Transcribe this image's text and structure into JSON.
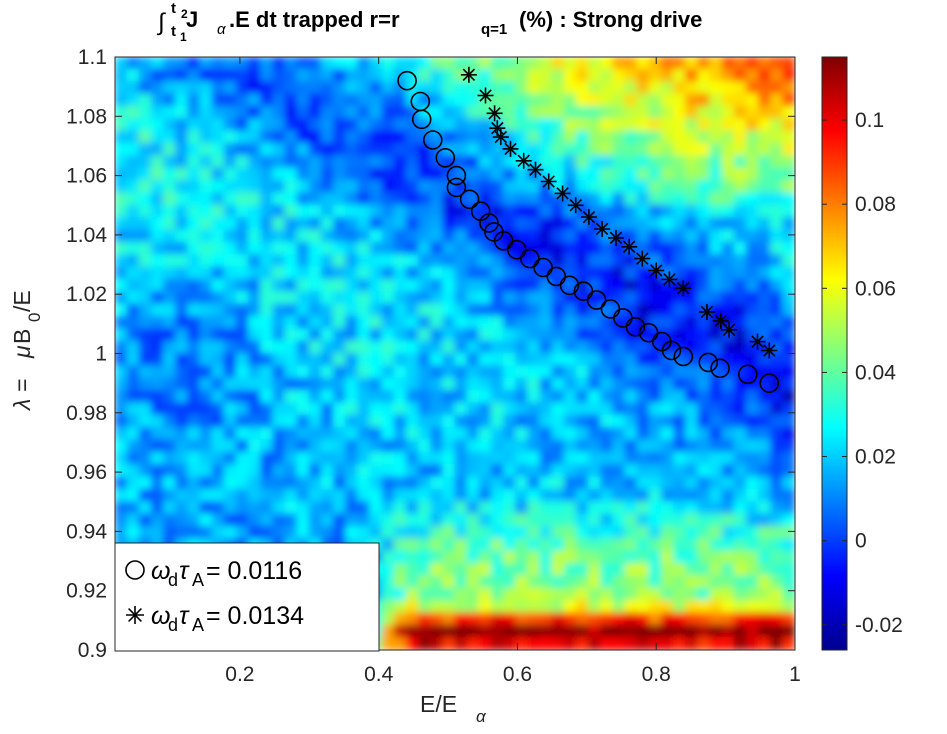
{
  "chart_data": {
    "type": "heatmap",
    "title": {
      "integral": "∫",
      "lim_top": "t",
      "lim_top_sub": "2",
      "lim_bot": "t",
      "lim_bot_sub": "1",
      "part1": " J",
      "part1_sub": "α",
      "part2": ".E dt  trapped r=r",
      "part2_sub": "q=1",
      "part3": " (%) : Strong drive"
    },
    "xlabel": {
      "main": "E/E",
      "sub": "α"
    },
    "ylabel": {
      "lambda": "λ = ",
      "mu": "μ",
      "b": " B",
      "b_sub": "0",
      "e": " /E"
    },
    "xlim": [
      0.02,
      1.0
    ],
    "ylim": [
      0.9,
      1.1
    ],
    "xticks": [
      {
        "v": 0.2,
        "label": "0.2"
      },
      {
        "v": 0.4,
        "label": "0.4"
      },
      {
        "v": 0.6,
        "label": "0.6"
      },
      {
        "v": 0.8,
        "label": "0.8"
      },
      {
        "v": 1.0,
        "label": "1"
      }
    ],
    "yticks": [
      {
        "v": 0.9,
        "label": "0.9"
      },
      {
        "v": 0.92,
        "label": "0.92"
      },
      {
        "v": 0.94,
        "label": "0.94"
      },
      {
        "v": 0.96,
        "label": "0.96"
      },
      {
        "v": 0.98,
        "label": "0.98"
      },
      {
        "v": 1.0,
        "label": "1"
      },
      {
        "v": 1.02,
        "label": "1.02"
      },
      {
        "v": 1.04,
        "label": "1.04"
      },
      {
        "v": 1.06,
        "label": "1.06"
      },
      {
        "v": 1.08,
        "label": "1.08"
      },
      {
        "v": 1.1,
        "label": "1.1"
      }
    ],
    "colorbar": {
      "range": [
        -0.026,
        0.115
      ],
      "colormap": "jet",
      "ticks": [
        {
          "v": -0.02,
          "label": "-0.02"
        },
        {
          "v": 0.0,
          "label": "0"
        },
        {
          "v": 0.02,
          "label": "0.02"
        },
        {
          "v": 0.04,
          "label": "0.04"
        },
        {
          "v": 0.06,
          "label": "0.06"
        },
        {
          "v": 0.08,
          "label": "0.08"
        },
        {
          "v": 0.1,
          "label": "0.1"
        }
      ]
    },
    "series": [
      {
        "name": "ω_d τ_A = 0.0116",
        "marker": "circle",
        "legend": {
          "omega": "ω",
          "d": "d",
          "tau": "τ",
          "A": "A",
          "value": " = 0.0116"
        },
        "x": [
          0.441,
          0.46,
          0.462,
          0.478,
          0.496,
          0.512,
          0.512,
          0.531,
          0.547,
          0.559,
          0.566,
          0.58,
          0.599,
          0.618,
          0.637,
          0.656,
          0.675,
          0.695,
          0.714,
          0.734,
          0.752,
          0.77,
          0.789,
          0.808,
          0.822,
          0.839,
          0.875,
          0.892,
          0.932,
          0.963
        ],
        "y": [
          1.092,
          1.085,
          1.079,
          1.072,
          1.066,
          1.06,
          1.056,
          1.052,
          1.048,
          1.044,
          1.041,
          1.038,
          1.035,
          1.032,
          1.029,
          1.026,
          1.023,
          1.021,
          1.018,
          1.015,
          1.012,
          1.009,
          1.007,
          1.004,
          1.001,
          0.999,
          0.997,
          0.995,
          0.993,
          0.99
        ]
      },
      {
        "name": "ω_d τ_A = 0.0134",
        "marker": "asterisk",
        "legend": {
          "omega": "ω",
          "d": "d",
          "tau": "τ",
          "A": "A",
          "value": " = 0.0134"
        },
        "x": [
          0.53,
          0.554,
          0.567,
          0.571,
          0.576,
          0.59,
          0.609,
          0.626,
          0.645,
          0.665,
          0.684,
          0.703,
          0.722,
          0.742,
          0.761,
          0.78,
          0.8,
          0.819,
          0.839,
          0.873,
          0.893,
          0.905,
          0.946,
          0.963
        ],
        "y": [
          1.094,
          1.087,
          1.081,
          1.076,
          1.073,
          1.069,
          1.065,
          1.062,
          1.058,
          1.054,
          1.05,
          1.046,
          1.042,
          1.039,
          1.036,
          1.032,
          1.028,
          1.025,
          1.022,
          1.014,
          1.011,
          1.008,
          1.004,
          1.001
        ]
      }
    ]
  }
}
